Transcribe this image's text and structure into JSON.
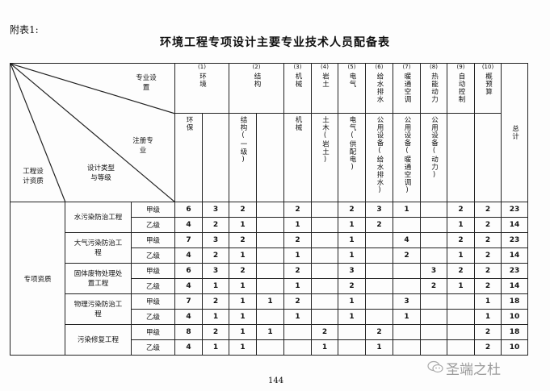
{
  "annex_label": "附表1:",
  "title": "环境工程专项设计主要专业技术人员配备表",
  "corner_labels": {
    "specialty": "专业设置",
    "registered": "注册专业",
    "design_type": "设计类型与等级",
    "qualification": "工程设计资质"
  },
  "specialties": [
    {
      "num": "(1)",
      "label": "环境",
      "span": 2
    },
    {
      "num": "(2)",
      "label": "结构",
      "span": 2
    },
    {
      "num": "(3)",
      "label": "机械",
      "span": 1
    },
    {
      "num": "(4)",
      "label": "岩土",
      "span": 1
    },
    {
      "num": "(5)",
      "label": "电气",
      "span": 1
    },
    {
      "num": "(6)",
      "label": "给水排水",
      "span": 1
    },
    {
      "num": "(7)",
      "label": "暖通空调",
      "span": 1
    },
    {
      "num": "(8)",
      "label": "热能动力",
      "span": 1
    },
    {
      "num": "(9)",
      "label": "自动控制",
      "span": 1
    },
    {
      "num": "(10)",
      "label": "概预算",
      "span": 1
    }
  ],
  "total_label": "总计",
  "registered": [
    "环保",
    "",
    "结构(一级)",
    "",
    "机械",
    "土木(岩土)",
    "电气(供配电)",
    "公用设备(给水排水)",
    "公用设备(暖通空调)",
    "公用设备(动力)",
    "",
    ""
  ],
  "qualification": "专项资质",
  "types": [
    {
      "name": "水污染防治工程",
      "rows": [
        {
          "grade": "甲级",
          "values": [
            "6",
            "3",
            "2",
            "",
            "2",
            "",
            "2",
            "3",
            "1",
            "",
            "2",
            "2",
            "23"
          ]
        },
        {
          "grade": "乙级",
          "values": [
            "4",
            "2",
            "1",
            "",
            "1",
            "",
            "1",
            "2",
            "",
            "",
            "1",
            "2",
            "14"
          ]
        }
      ]
    },
    {
      "name": "大气污染防治工程",
      "rows": [
        {
          "grade": "甲级",
          "values": [
            "7",
            "3",
            "2",
            "",
            "2",
            "",
            "1",
            "",
            "4",
            "",
            "2",
            "2",
            "23"
          ]
        },
        {
          "grade": "乙级",
          "values": [
            "4",
            "2",
            "1",
            "",
            "1",
            "",
            "1",
            "",
            "2",
            "",
            "1",
            "2",
            "14"
          ]
        }
      ]
    },
    {
      "name": "固体废物处理处置工程",
      "rows": [
        {
          "grade": "甲级",
          "values": [
            "6",
            "3",
            "2",
            "",
            "2",
            "",
            "3",
            "",
            "",
            "3",
            "2",
            "2",
            "23"
          ]
        },
        {
          "grade": "乙级",
          "values": [
            "4",
            "1",
            "1",
            "",
            "1",
            "",
            "2",
            "",
            "",
            "2",
            "1",
            "2",
            "14"
          ]
        }
      ]
    },
    {
      "name": "物理污染防治工程",
      "rows": [
        {
          "grade": "甲级",
          "values": [
            "7",
            "2",
            "1",
            "1",
            "2",
            "",
            "1",
            "",
            "3",
            "",
            "",
            "1",
            "18"
          ]
        },
        {
          "grade": "乙级",
          "values": [
            "4",
            "1",
            "1",
            "",
            "1",
            "",
            "1",
            "",
            "1",
            "",
            "",
            "1",
            "10"
          ]
        }
      ]
    },
    {
      "name": "污染修复工程",
      "rows": [
        {
          "grade": "甲级",
          "values": [
            "8",
            "2",
            "1",
            "1",
            "",
            "2",
            "",
            "2",
            "",
            "",
            "",
            "2",
            "18"
          ]
        },
        {
          "grade": "乙级",
          "values": [
            "4",
            "1",
            "1",
            "",
            "",
            "1",
            "",
            "1",
            "",
            "",
            "",
            "2",
            "10"
          ]
        }
      ]
    }
  ],
  "page_number": "144",
  "watermark": "圣端之杜",
  "watermark_icon": "wechat-icon"
}
